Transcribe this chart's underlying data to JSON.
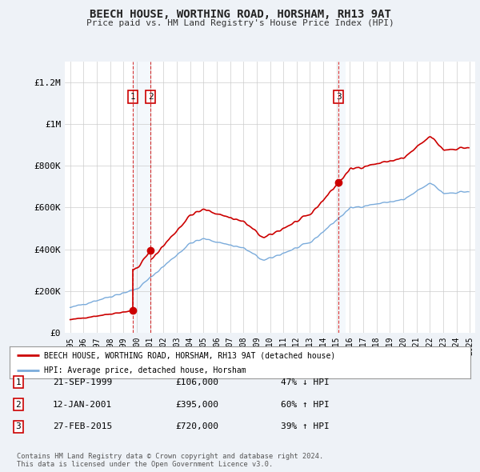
{
  "title": "BEECH HOUSE, WORTHING ROAD, HORSHAM, RH13 9AT",
  "subtitle": "Price paid vs. HM Land Registry's House Price Index (HPI)",
  "ylim": [
    0,
    1300000
  ],
  "yticks": [
    0,
    200000,
    400000,
    600000,
    800000,
    1000000,
    1200000
  ],
  "ytick_labels": [
    "£0",
    "£200K",
    "£400K",
    "£600K",
    "£800K",
    "£1M",
    "£1.2M"
  ],
  "house_color": "#cc0000",
  "hpi_color": "#7aabdb",
  "legend_house": "BEECH HOUSE, WORTHING ROAD, HORSHAM, RH13 9AT (detached house)",
  "legend_hpi": "HPI: Average price, detached house, Horsham",
  "t1_year": 1999.72,
  "t2_year": 2001.04,
  "t3_year": 2015.15,
  "t1_price": 106000,
  "t2_price": 395000,
  "t3_price": 720000,
  "transactions": [
    {
      "num": 1,
      "date": "21-SEP-1999",
      "price": 106000,
      "hpi_pct": "47% ↓ HPI"
    },
    {
      "num": 2,
      "date": "12-JAN-2001",
      "price": 395000,
      "hpi_pct": "60% ↑ HPI"
    },
    {
      "num": 3,
      "date": "27-FEB-2015",
      "price": 720000,
      "hpi_pct": "39% ↑ HPI"
    }
  ],
  "copyright": "Contains HM Land Registry data © Crown copyright and database right 2024.\nThis data is licensed under the Open Government Licence v3.0.",
  "background_color": "#eef2f7",
  "plot_bg": "#ffffff",
  "grid_color": "#cccccc"
}
